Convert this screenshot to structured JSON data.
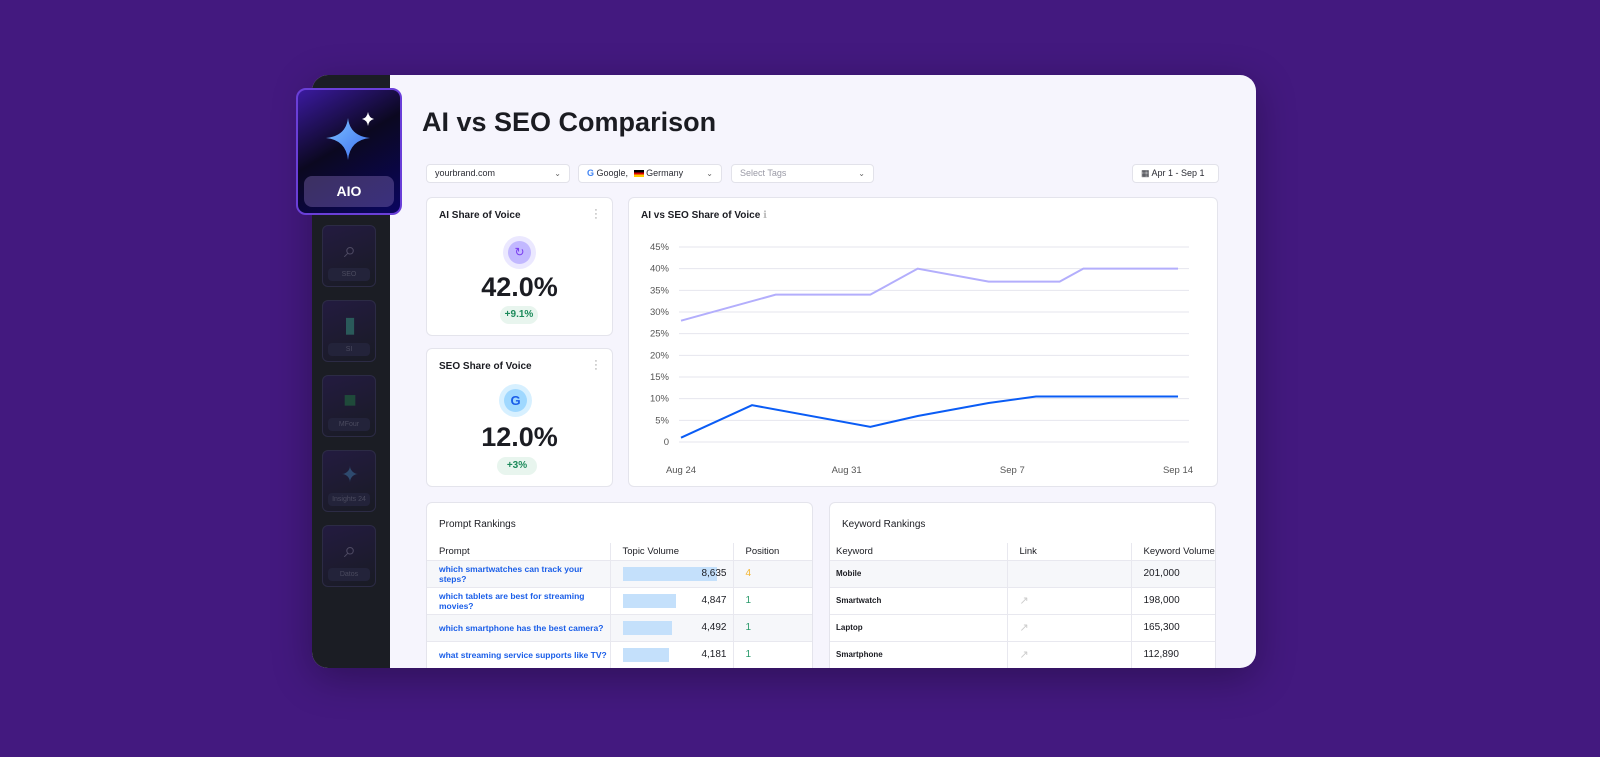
{
  "sidebar": {
    "active": {
      "label": "AIO",
      "icon": "sparkle-icon"
    },
    "items": [
      {
        "label": "SEO",
        "icon": "chart-search-icon"
      },
      {
        "label": "SI",
        "icon": "document-search-icon"
      },
      {
        "label": "MFour",
        "icon": "square-icon"
      },
      {
        "label": "Insights 24",
        "icon": "sparkle-icon"
      },
      {
        "label": "Datos",
        "icon": "chart-search-icon"
      }
    ]
  },
  "header": {
    "title": "AI vs SEO Comparison"
  },
  "filters": {
    "domain": "yourbrand.com",
    "engine": "Google,",
    "country": "Germany",
    "tags_placeholder": "Select Tags",
    "date_range": "Apr 1 - Sep 1"
  },
  "kpis": [
    {
      "title": "AI Share of Voice",
      "value": "42.0%",
      "change": "+9.1%",
      "icon": "chat-sparkle-icon",
      "color": "#a99cff"
    },
    {
      "title": "SEO Share of Voice",
      "value": "12.0%",
      "change": "+3%",
      "icon": "google-icon",
      "color": "#1a5ee8"
    }
  ],
  "chart_data": {
    "type": "line",
    "title": "AI vs SEO Share of Voice",
    "ylim": [
      0,
      45
    ],
    "yticks": [
      "0",
      "5%",
      "10%",
      "15%",
      "20%",
      "25%",
      "30%",
      "35%",
      "40%",
      "45%"
    ],
    "xticks": [
      "Aug 24",
      "Aug 31",
      "Sep 7",
      "Sep 14"
    ],
    "grid": true,
    "series": [
      {
        "color": "#b3aefc",
        "points": [
          [
            "Aug 24",
            28
          ],
          [
            "Aug 28",
            34
          ],
          [
            "Sep 1",
            34
          ],
          [
            "Sep 3",
            40
          ],
          [
            "Sep 6",
            37
          ],
          [
            "Sep 9",
            37
          ],
          [
            "Sep 10",
            40
          ],
          [
            "Sep 14",
            40
          ]
        ]
      },
      {
        "color": "#0a5cf5",
        "points": [
          [
            "Aug 24",
            1
          ],
          [
            "Aug 27",
            8.5
          ],
          [
            "Sep 1",
            3.5
          ],
          [
            "Sep 3",
            6
          ],
          [
            "Sep 6",
            9
          ],
          [
            "Sep 8",
            10.5
          ],
          [
            "Sep 14",
            10.5
          ]
        ]
      }
    ]
  },
  "prompt_rankings": {
    "title": "Prompt Rankings",
    "columns": [
      "Prompt",
      "Topic Volume",
      "Position"
    ],
    "rows": [
      {
        "prompt": "which smartwatches can track your steps?",
        "volume": "8,635",
        "volume_value": 8635,
        "position": "4"
      },
      {
        "prompt": "which tablets are best for streaming movies?",
        "volume": "4,847",
        "volume_value": 4847,
        "position": "1"
      },
      {
        "prompt": "which smartphone has the best camera?",
        "volume": "4,492",
        "volume_value": 4492,
        "position": "1"
      },
      {
        "prompt": "what streaming service supports like TV?",
        "volume": "4,181",
        "volume_value": 4181,
        "position": "1"
      }
    ]
  },
  "keyword_rankings": {
    "title": "Keyword Rankings",
    "columns": [
      "Keyword",
      "Link",
      "Keyword Volume"
    ],
    "rows": [
      {
        "keyword": "Mobile",
        "link": false,
        "volume": "201,000"
      },
      {
        "keyword": "Smartwatch",
        "link": true,
        "volume": "198,000"
      },
      {
        "keyword": "Laptop",
        "link": true,
        "volume": "165,300"
      },
      {
        "keyword": "Smartphone",
        "link": true,
        "volume": "112,890"
      }
    ]
  }
}
